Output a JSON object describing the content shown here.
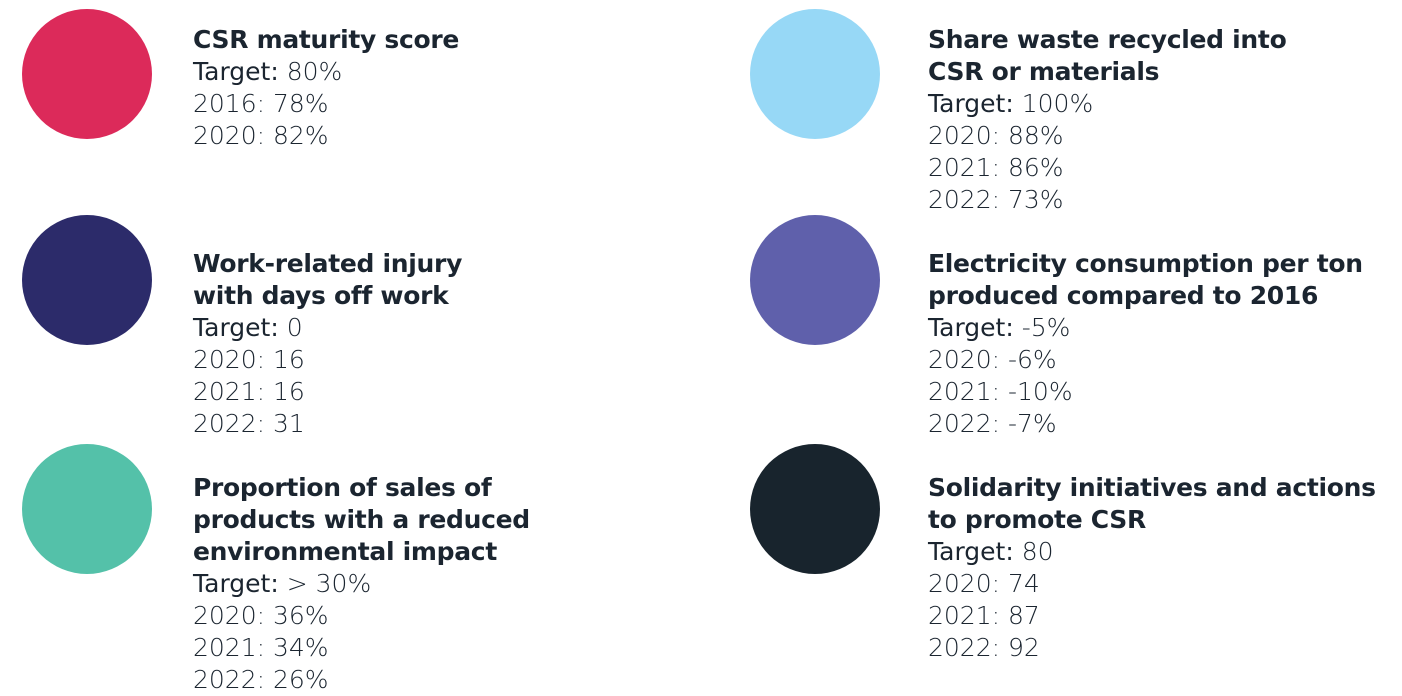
{
  "columns": [
    [
      {
        "color": "#dc2a5a",
        "title": [
          "CSR maturity score"
        ],
        "target": {
          "label": "Target:",
          "value": "80%"
        },
        "history": [
          "2016: 78%",
          "2020: 82%"
        ]
      },
      {
        "color": "#2c2b6a",
        "title": [
          "Work-related injury",
          "with days off work"
        ],
        "target": {
          "label": "Target:",
          "value": "0"
        },
        "history": [
          "2020: 16",
          "2021: 16",
          "2022: 31"
        ]
      },
      {
        "color": "#54c1a9",
        "title": [
          "Proportion of sales of",
          "products with a reduced",
          "environmental impact"
        ],
        "target": {
          "label": "Target:",
          "value": "> 30%"
        },
        "history": [
          "2020: 36%",
          "2021: 34%",
          "2022: 26%"
        ]
      }
    ],
    [
      {
        "color": "#97d8f6",
        "title": [
          "Share waste recycled into",
          "CSR or materials"
        ],
        "target": {
          "label": "Target:",
          "value": "100%"
        },
        "history": [
          "2020: 88%",
          "2021: 86%",
          "2022: 73%"
        ]
      },
      {
        "color": "#5f60ab",
        "title": [
          "Electricity consumption per ton",
          "produced compared to 2016"
        ],
        "target": {
          "label": "Target:",
          "value": "-5%"
        },
        "history": [
          "2020: -6%",
          "2021: -10%",
          "2022: -7%"
        ]
      },
      {
        "color": "#18242d",
        "title": [
          "Solidarity initiatives and actions",
          "to promote CSR"
        ],
        "target": {
          "label": "Target:",
          "value": "80"
        },
        "history": [
          "2020: 74",
          "2021: 87",
          "2022: 92"
        ]
      }
    ]
  ]
}
